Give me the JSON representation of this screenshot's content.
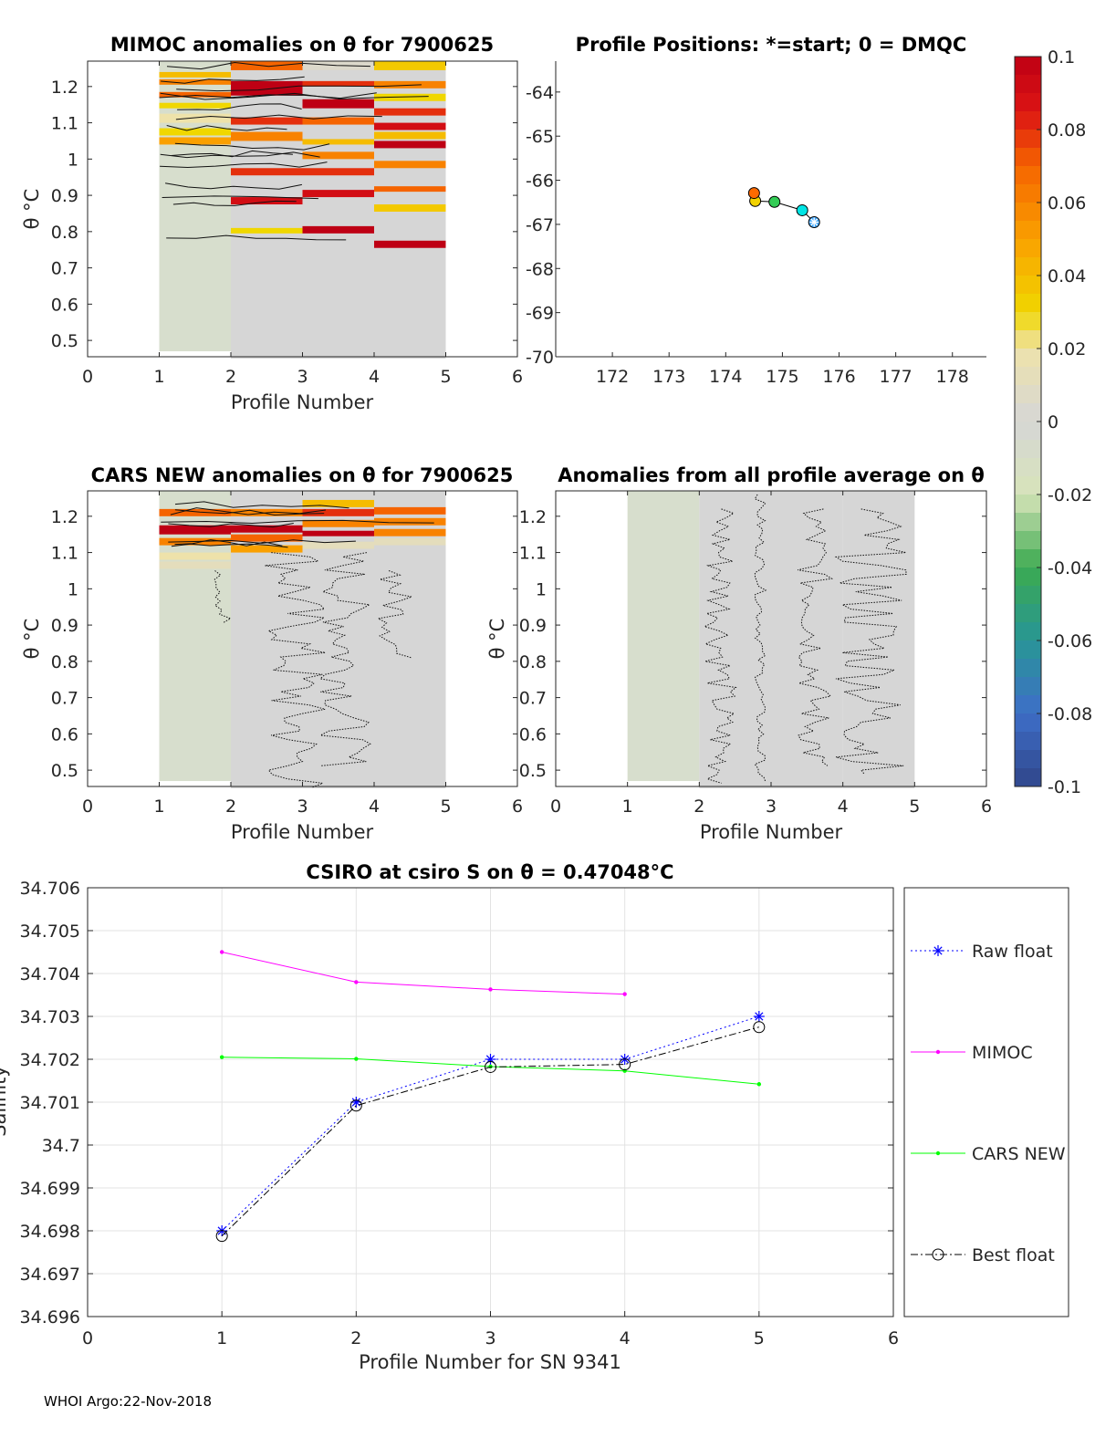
{
  "footer": "WHOI Argo:22-Nov-2018",
  "colors": {
    "background_anomaly": "#d6d6d6",
    "raw_float": "#0000ff",
    "mimoc": "#ff00ff",
    "cars_new": "#00ff00",
    "best_float": "#000000"
  },
  "colorbar": {
    "ticks": [
      "0.1",
      "0.08",
      "0.06",
      "0.04",
      "0.02",
      "0",
      "-0.02",
      "-0.04",
      "-0.06",
      "-0.08",
      "-0.1"
    ],
    "range": [
      -0.1,
      0.1
    ]
  },
  "chart_data": [
    {
      "id": "mimoc",
      "type": "heatmap",
      "title": "MIMOC anomalies on θ  for 7900625",
      "xlabel": "Profile Number",
      "ylabel": "θ °C",
      "xlim": [
        0,
        6
      ],
      "ylim": [
        0.455,
        1.27
      ],
      "xticks": [
        "0",
        "1",
        "2",
        "3",
        "4",
        "5",
        "6"
      ],
      "yticks": [
        "0.5",
        "0.6",
        "0.7",
        "0.8",
        "0.9",
        "1",
        "1.1",
        "1.2"
      ],
      "profiles": [
        {
          "n": 1,
          "bottom": 0.47,
          "base": -0.005,
          "bands": [
            [
              1.205,
              1.22,
              0.06
            ],
            [
              1.225,
              1.24,
              0.04
            ],
            [
              1.17,
              1.185,
              0.07
            ],
            [
              1.14,
              1.155,
              0.03
            ],
            [
              1.1,
              1.125,
              0.02
            ],
            [
              1.04,
              1.06,
              0.05
            ],
            [
              1.065,
              1.085,
              0.03
            ]
          ]
        },
        {
          "n": 2,
          "bottom": 0.45,
          "base": 0,
          "bands": [
            [
              1.245,
              1.27,
              0.07
            ],
            [
              1.175,
              1.215,
              0.1
            ],
            [
              1.095,
              1.115,
              0.08
            ],
            [
              1.05,
              1.075,
              0.06
            ],
            [
              0.955,
              0.975,
              0.08
            ],
            [
              0.875,
              0.895,
              0.09
            ],
            [
              0.795,
              0.81,
              0.03
            ]
          ]
        },
        {
          "n": 3,
          "bottom": 0.45,
          "base": 0,
          "bands": [
            [
              1.245,
              1.27,
              0.005
            ],
            [
              1.2,
              1.215,
              0.08
            ],
            [
              1.14,
              1.165,
              0.1
            ],
            [
              1.095,
              1.115,
              0.07
            ],
            [
              1.04,
              1.055,
              0.04
            ],
            [
              1.0,
              1.02,
              0.06
            ],
            [
              0.955,
              0.975,
              0.08
            ],
            [
              0.895,
              0.915,
              0.09
            ],
            [
              0.795,
              0.815,
              0.1
            ]
          ]
        },
        {
          "n": 4,
          "bottom": 0.45,
          "base": 0,
          "bands": [
            [
              1.245,
              1.27,
              0.035
            ],
            [
              1.195,
              1.215,
              0.06
            ],
            [
              1.16,
              1.18,
              0.03
            ],
            [
              1.12,
              1.14,
              0.08
            ],
            [
              1.08,
              1.1,
              0.09
            ],
            [
              1.055,
              1.075,
              0.04
            ],
            [
              1.03,
              1.05,
              0.1
            ],
            [
              0.975,
              0.995,
              0.06
            ],
            [
              0.91,
              0.925,
              0.07
            ],
            [
              0.855,
              0.875,
              0.035
            ],
            [
              0.755,
              0.775,
              0.1
            ]
          ]
        }
      ]
    },
    {
      "id": "positions",
      "type": "scatter",
      "title": "Profile Positions: *=start; 0 = DMQC",
      "xlim": [
        171.0,
        178.6
      ],
      "ylim": [
        -70,
        -63.3
      ],
      "xticks": [
        "172",
        "173",
        "174",
        "175",
        "176",
        "177",
        "178"
      ],
      "yticks": [
        "-64",
        "-65",
        "-66",
        "-67",
        "-68",
        "-69",
        "-70"
      ],
      "points": [
        {
          "lon": 175.56,
          "lat": -66.95,
          "color": "#3fa7ff"
        },
        {
          "lon": 175.35,
          "lat": -66.68,
          "color": "#00e5e5"
        },
        {
          "lon": 174.86,
          "lat": -66.49,
          "color": "#33cc55"
        },
        {
          "lon": 174.52,
          "lat": -66.47,
          "color": "#f2d200"
        },
        {
          "lon": 174.5,
          "lat": -66.29,
          "color": "#ff6a00"
        }
      ]
    },
    {
      "id": "cars",
      "type": "heatmap",
      "title": "CARS NEW anomalies on θ for 7900625",
      "xlabel": "Profile Number",
      "ylabel": "θ °C",
      "xlim": [
        0,
        6
      ],
      "ylim": [
        0.455,
        1.27
      ],
      "xticks": [
        "0",
        "1",
        "2",
        "3",
        "4",
        "5",
        "6"
      ],
      "yticks": [
        "0.5",
        "0.6",
        "0.7",
        "0.8",
        "0.9",
        "1",
        "1.1",
        "1.2"
      ],
      "profiles": [
        {
          "n": 1,
          "bottom": 0.47,
          "base": -0.006,
          "bands": [
            [
              1.2,
              1.22,
              0.07
            ],
            [
              1.15,
              1.175,
              0.1
            ],
            [
              1.12,
              1.14,
              0.06
            ],
            [
              1.08,
              1.1,
              0.02
            ],
            [
              1.055,
              1.075,
              0.012
            ]
          ]
        },
        {
          "n": 2,
          "bottom": 0.45,
          "base": 0,
          "bands": [
            [
              1.2,
              1.22,
              0.06
            ],
            [
              1.155,
              1.175,
              0.1
            ],
            [
              1.13,
              1.15,
              0.07
            ],
            [
              1.1,
              1.12,
              0.05
            ]
          ]
        },
        {
          "n": 3,
          "bottom": 0.45,
          "base": 0,
          "bands": [
            [
              1.225,
              1.245,
              0.04
            ],
            [
              1.2,
              1.22,
              0.08
            ],
            [
              1.17,
              1.19,
              0.06
            ],
            [
              1.145,
              1.16,
              0.1
            ],
            [
              1.11,
              1.13,
              0.012
            ]
          ]
        },
        {
          "n": 4,
          "bottom": 0.45,
          "base": 0,
          "bands": [
            [
              1.205,
              1.225,
              0.07
            ],
            [
              1.175,
              1.195,
              0.06
            ],
            [
              1.145,
              1.165,
              0.06
            ],
            [
              1.12,
              1.14,
              0.012
            ]
          ]
        }
      ]
    },
    {
      "id": "allavg",
      "type": "heatmap",
      "title": "Anomalies from all profile average on θ",
      "xlabel": "Profile Number",
      "ylabel": "θ °C",
      "xlim": [
        0,
        6
      ],
      "ylim": [
        0.455,
        1.27
      ],
      "xticks": [
        "0",
        "1",
        "2",
        "3",
        "4",
        "5",
        "6"
      ],
      "yticks": [
        "0.5",
        "0.6",
        "0.7",
        "0.8",
        "0.9",
        "1",
        "1.1",
        "1.2"
      ],
      "profiles": [
        {
          "n": 1,
          "bottom": 0.47,
          "base": -0.004,
          "bands": []
        },
        {
          "n": 2,
          "bottom": 0.45,
          "base": 0,
          "bands": []
        },
        {
          "n": 3,
          "bottom": 0.45,
          "base": 0,
          "bands": []
        },
        {
          "n": 4,
          "bottom": 0.45,
          "base": 0,
          "bands": []
        }
      ]
    },
    {
      "id": "salinity",
      "type": "line",
      "title": "CSIRO at csiro S on θ = 0.47048°C",
      "xlabel": "Profile Number for SN 9341",
      "ylabel": "Salinity",
      "xlim": [
        0,
        6
      ],
      "ylim": [
        34.696,
        34.706
      ],
      "xticks": [
        "0",
        "1",
        "2",
        "3",
        "4",
        "5",
        "6"
      ],
      "yticks": [
        "34.706",
        "34.705",
        "34.704",
        "34.703",
        "34.702",
        "34.701",
        "34.7",
        "34.699",
        "34.698",
        "34.697",
        "34.696"
      ],
      "series": [
        {
          "name": "Raw float",
          "x": [
            1,
            2,
            3,
            4,
            5
          ],
          "y": [
            34.698,
            34.701,
            34.702,
            34.702,
            34.703
          ]
        },
        {
          "name": "MIMOC",
          "x": [
            1,
            2,
            3,
            4
          ],
          "y": [
            34.7045,
            34.7038,
            34.70363,
            34.70352
          ]
        },
        {
          "name": "CARS NEW",
          "x": [
            1,
            2,
            3,
            4,
            5
          ],
          "y": [
            34.70205,
            34.70201,
            34.70183,
            34.70173,
            34.70142
          ]
        },
        {
          "name": "Best float",
          "x": [
            1,
            2,
            3,
            4,
            5
          ],
          "y": [
            34.69788,
            34.70092,
            34.70182,
            34.70188,
            34.70275
          ]
        }
      ]
    }
  ]
}
